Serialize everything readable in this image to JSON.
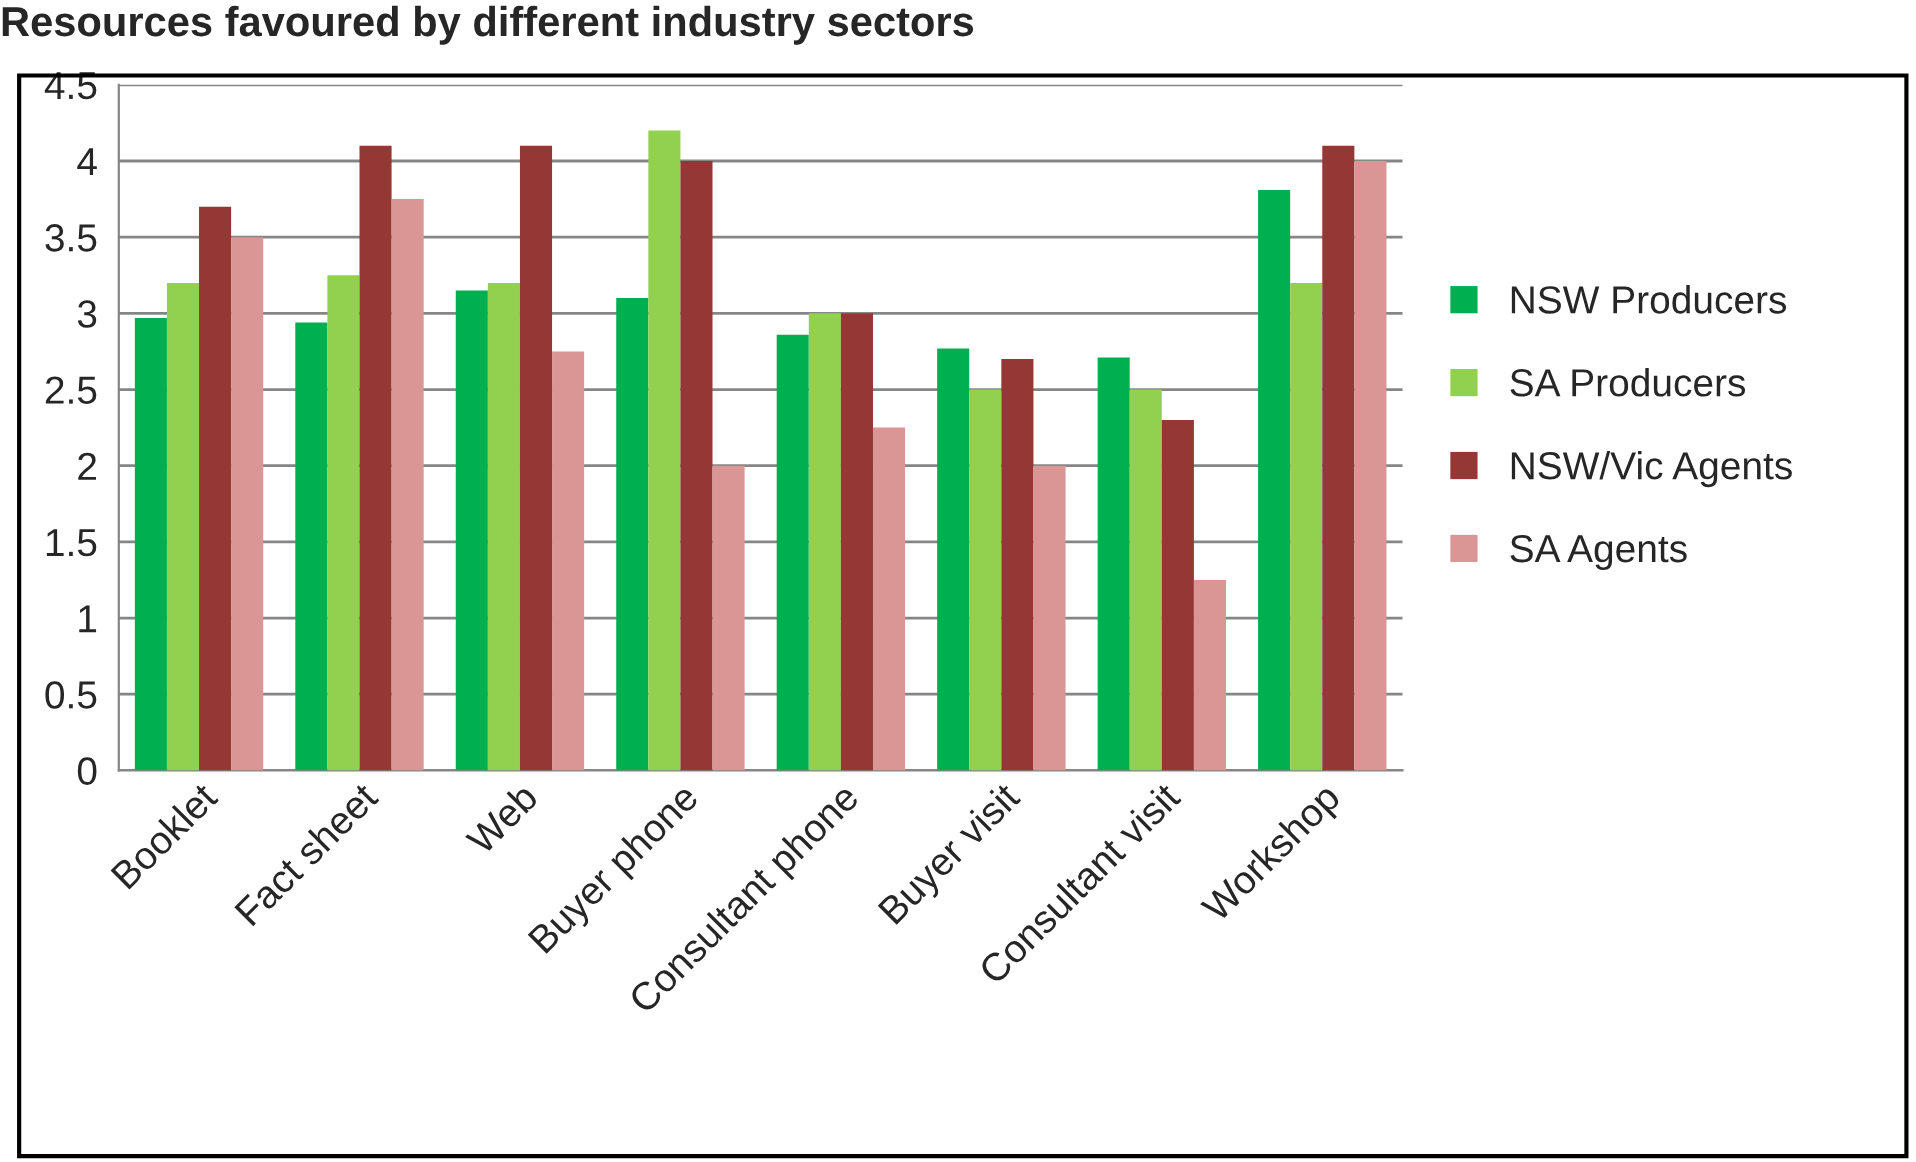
{
  "chart_data": {
    "type": "bar",
    "title": "Resources favoured by different industry sectors",
    "categories": [
      "Booklet",
      "Fact sheet",
      "Web",
      "Buyer phone",
      "Consultant phone",
      "Buyer visit",
      "Consultant visit",
      "Workshop"
    ],
    "series": [
      {
        "name": "NSW Producers",
        "color": "#00b050",
        "values": [
          2.97,
          2.94,
          3.15,
          3.1,
          2.86,
          2.77,
          2.71,
          3.81
        ]
      },
      {
        "name": "SA Producers",
        "color": "#92d050",
        "values": [
          3.2,
          3.25,
          3.2,
          4.2,
          3.0,
          2.5,
          2.5,
          3.2
        ]
      },
      {
        "name": "NSW/Vic Agents",
        "color": "#953735",
        "values": [
          3.7,
          4.1,
          4.1,
          4.0,
          3.0,
          2.7,
          2.3,
          4.1
        ]
      },
      {
        "name": "SA Agents",
        "color": "#d99694",
        "values": [
          3.5,
          3.75,
          2.75,
          2.0,
          2.25,
          2.0,
          1.25,
          4.0
        ]
      }
    ],
    "ylim": [
      0,
      4.5
    ],
    "yticks": [
      0,
      0.5,
      1,
      1.5,
      2,
      2.5,
      3,
      3.5,
      4,
      4.5
    ],
    "grid": "y",
    "legend": "right"
  }
}
